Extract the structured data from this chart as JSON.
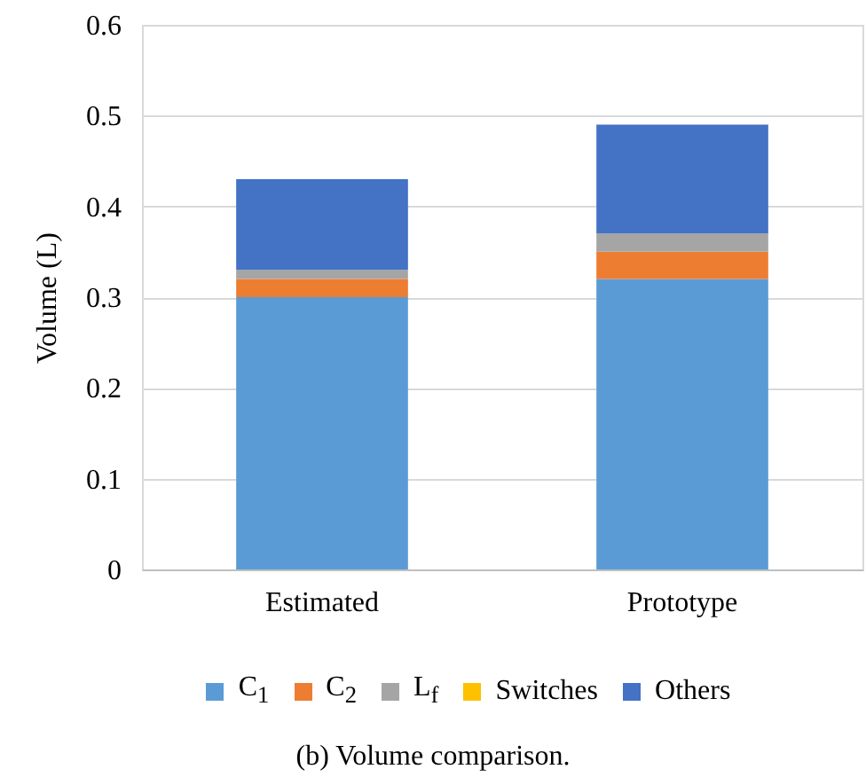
{
  "chart_data": {
    "type": "bar",
    "title": "(b) Volume comparison.",
    "ylabel": "Volume (L)",
    "stacked": true,
    "categories": [
      "Estimated",
      "Prototype"
    ],
    "series": [
      {
        "name": "C$_{1}$",
        "color": "#5b9bd5",
        "values": [
          0.3,
          0.32
        ]
      },
      {
        "name": "C$_{2}$",
        "color": "#ed7d31",
        "values": [
          0.02,
          0.03
        ]
      },
      {
        "name": "L$_{f}$",
        "color": "#a5a5a5",
        "values": [
          0.01,
          0.02
        ]
      },
      {
        "name": "Switches",
        "color": "#ffc000",
        "values": [
          0,
          0
        ]
      },
      {
        "name": "Others",
        "color": "#4472c4",
        "values": [
          0.1,
          0.12
        ]
      }
    ],
    "ylim": [
      0,
      0.6
    ],
    "yticks": [
      0,
      0.1,
      0.2,
      0.3,
      0.4,
      0.5,
      0.6
    ],
    "grid": "y",
    "legend": "bottom"
  }
}
